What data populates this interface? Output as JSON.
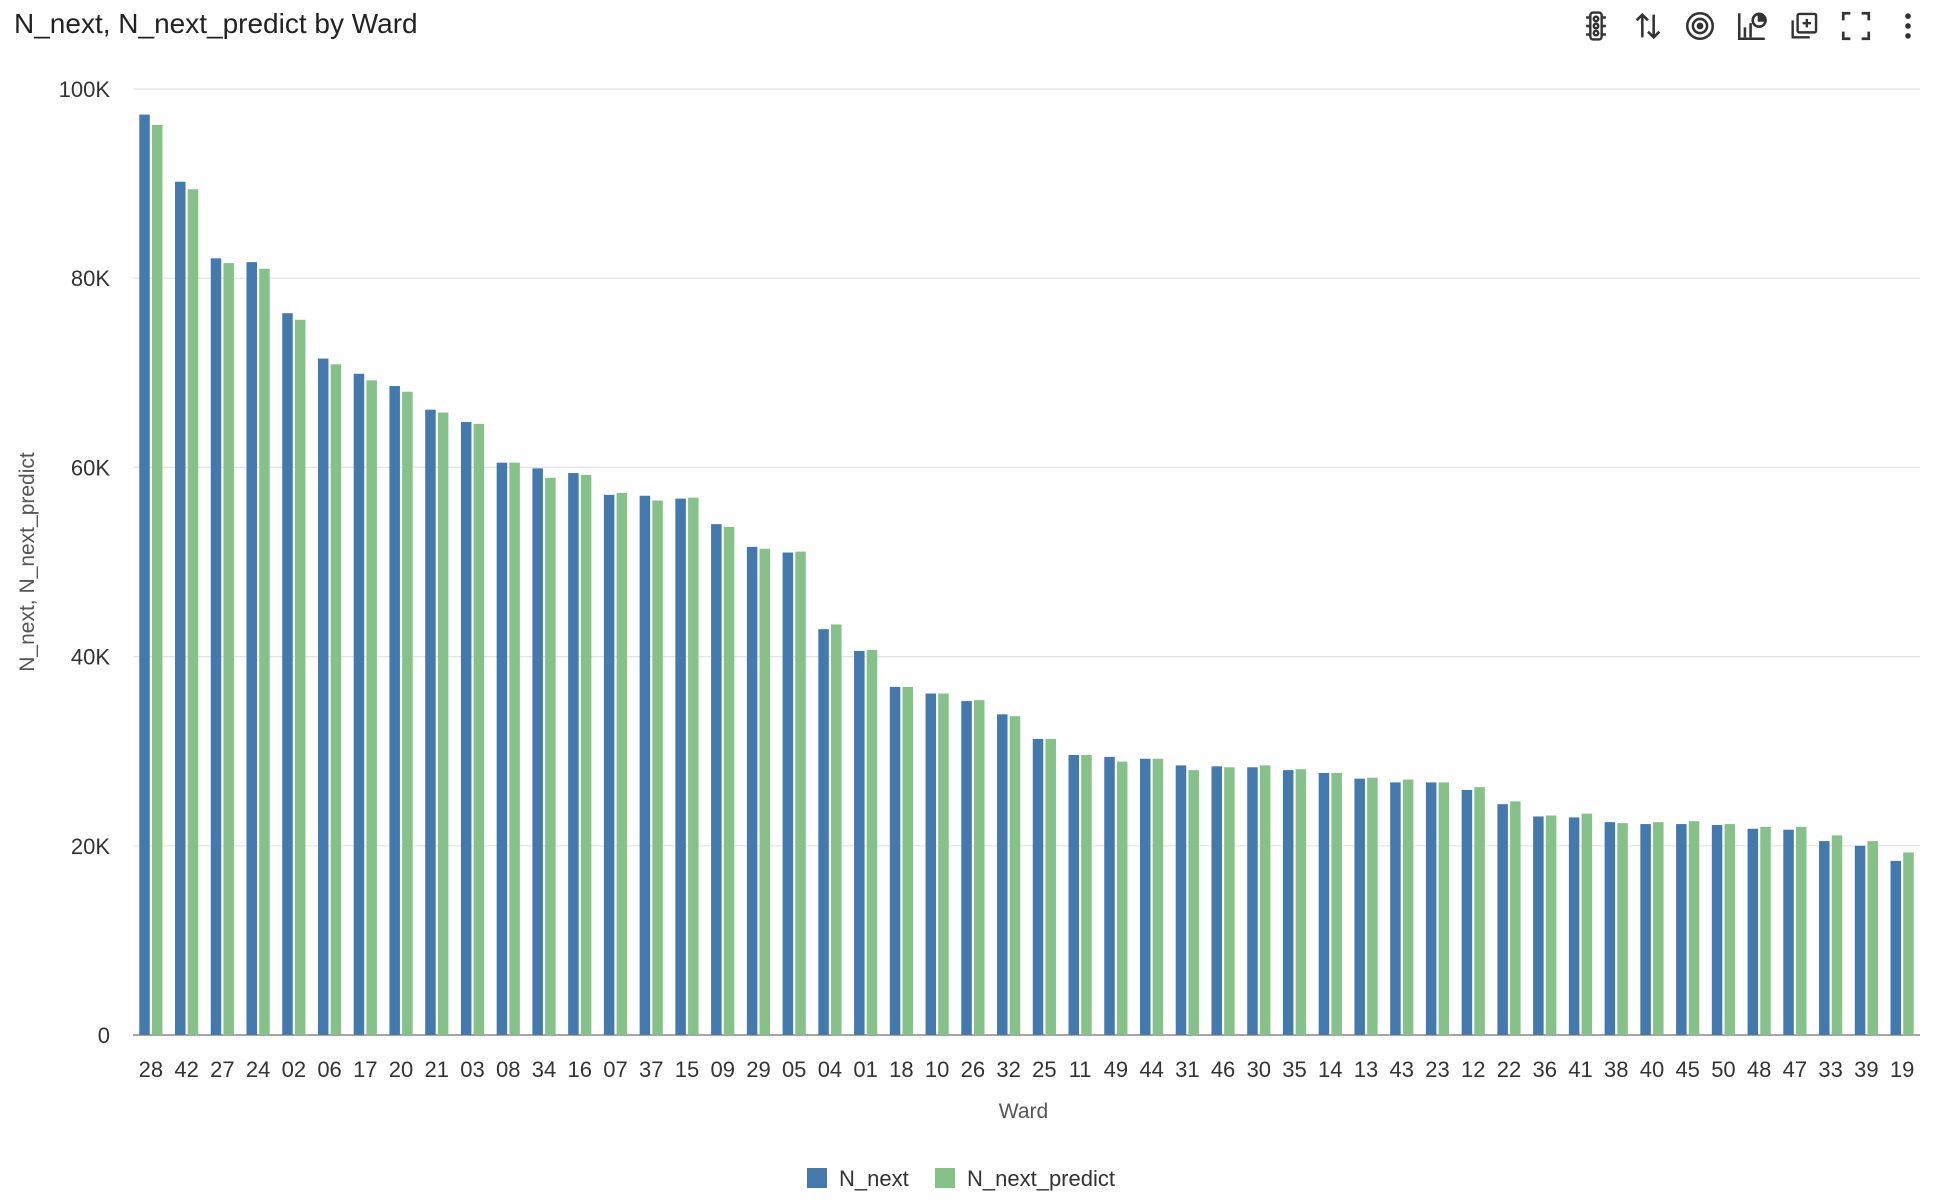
{
  "chart_title": "N_next, N_next_predict by Ward",
  "toolbar": [
    {
      "name": "traffic-light-icon",
      "label": "Conditional formatting"
    },
    {
      "name": "sort-icon",
      "label": "Sort"
    },
    {
      "name": "target-icon",
      "label": "Target"
    },
    {
      "name": "chart-type-icon",
      "label": "Chart type"
    },
    {
      "name": "duplicate-icon",
      "label": "Duplicate"
    },
    {
      "name": "fullscreen-icon",
      "label": "Full screen"
    },
    {
      "name": "more-icon",
      "label": "More"
    }
  ],
  "chart_data": {
    "type": "bar",
    "title": "N_next, N_next_predict by Ward",
    "xlabel": "Ward",
    "ylabel": "N_next, N_next_predict",
    "ylim": [
      0,
      100000
    ],
    "yticks": [
      0,
      20000,
      40000,
      60000,
      80000,
      100000
    ],
    "ytick_labels": [
      "0",
      "20K",
      "40K",
      "60K",
      "80K",
      "100K"
    ],
    "grid": true,
    "legend": "bottom-center",
    "categories": [
      "28",
      "42",
      "27",
      "24",
      "02",
      "06",
      "17",
      "20",
      "21",
      "03",
      "08",
      "34",
      "16",
      "07",
      "37",
      "15",
      "09",
      "29",
      "05",
      "04",
      "01",
      "18",
      "10",
      "26",
      "32",
      "25",
      "11",
      "49",
      "44",
      "31",
      "46",
      "30",
      "35",
      "14",
      "13",
      "43",
      "23",
      "12",
      "22",
      "36",
      "41",
      "38",
      "40",
      "45",
      "50",
      "48",
      "47",
      "33",
      "39",
      "19"
    ],
    "series": [
      {
        "name": "N_next",
        "color": "#4479AE",
        "values": [
          97300,
          90200,
          82100,
          81700,
          76300,
          71500,
          69900,
          68600,
          66100,
          64800,
          60500,
          59900,
          59400,
          57100,
          57000,
          56700,
          54000,
          51600,
          51000,
          42900,
          40600,
          36800,
          36100,
          35300,
          33900,
          31300,
          29600,
          29400,
          29200,
          28500,
          28400,
          28300,
          28000,
          27700,
          27100,
          26700,
          26700,
          25900,
          24400,
          23100,
          23000,
          22500,
          22300,
          22300,
          22200,
          21800,
          21700,
          20500,
          20000,
          18400
        ]
      },
      {
        "name": "N_next_predict",
        "color": "#86C18A",
        "values": [
          96200,
          89400,
          81600,
          81000,
          75600,
          70900,
          69200,
          68000,
          65800,
          64600,
          60500,
          58900,
          59200,
          57300,
          56500,
          56800,
          53700,
          51400,
          51100,
          43400,
          40700,
          36800,
          36100,
          35400,
          33700,
          31300,
          29600,
          28900,
          29200,
          28000,
          28300,
          28500,
          28100,
          27700,
          27200,
          27000,
          26700,
          26200,
          24700,
          23200,
          23400,
          22400,
          22500,
          22600,
          22300,
          22000,
          22000,
          21100,
          20500,
          19300
        ]
      }
    ]
  }
}
